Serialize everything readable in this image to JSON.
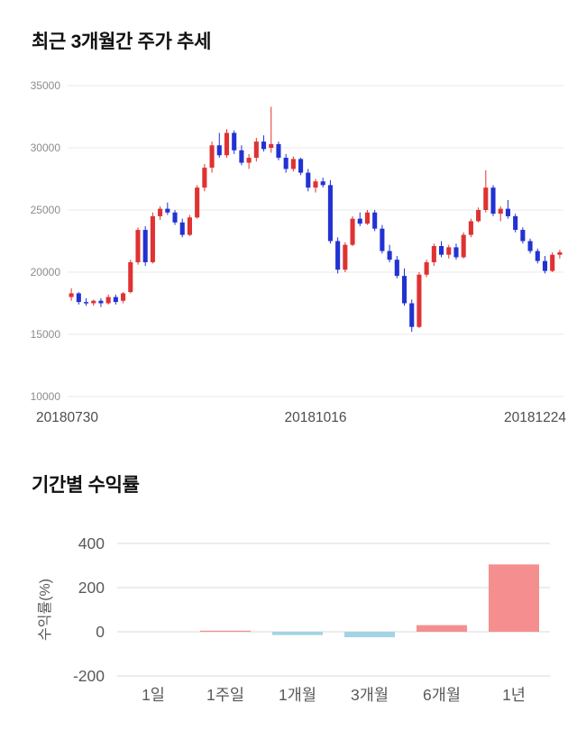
{
  "page": {
    "background": "#ffffff"
  },
  "sections": {
    "price_chart": {
      "title": "최근 3개월간 주가 추세"
    },
    "returns_chart": {
      "title": "기간별 수익률"
    }
  },
  "chart_data": [
    {
      "type": "candlestick",
      "title": "최근 3개월간 주가 추세",
      "ylim": [
        10000,
        35000
      ],
      "yticks": [
        35000,
        30000,
        25000,
        20000,
        15000,
        10000
      ],
      "xtick_labels": [
        "20180730",
        "20181016",
        "20181224"
      ],
      "up_color": "#e03232",
      "down_color": "#2232d2",
      "grid_color": "#e8e8e8",
      "tick_color": "#8c8c8c",
      "xlabel_color": "#4d4d4d",
      "grid": true,
      "candles_format": "[open, high, low, close]",
      "candles": [
        [
          18000,
          18700,
          17700,
          18300
        ],
        [
          18300,
          18400,
          17400,
          17600
        ],
        [
          17600,
          17900,
          17300,
          17500
        ],
        [
          17500,
          17800,
          17300,
          17700
        ],
        [
          17700,
          17900,
          17200,
          17500
        ],
        [
          17500,
          18200,
          17400,
          18000
        ],
        [
          18000,
          18200,
          17400,
          17600
        ],
        [
          17700,
          18400,
          17500,
          18300
        ],
        [
          18400,
          21000,
          18300,
          20800
        ],
        [
          20800,
          23600,
          20600,
          23400
        ],
        [
          23400,
          23700,
          20500,
          20800
        ],
        [
          20800,
          24800,
          20700,
          24500
        ],
        [
          24500,
          25300,
          24200,
          25100
        ],
        [
          25100,
          25600,
          24600,
          24800
        ],
        [
          24800,
          25000,
          23800,
          24000
        ],
        [
          24000,
          24300,
          22800,
          23000
        ],
        [
          23000,
          24600,
          22900,
          24400
        ],
        [
          24400,
          27000,
          24300,
          26800
        ],
        [
          26800,
          28700,
          26500,
          28400
        ],
        [
          28400,
          30500,
          28000,
          30200
        ],
        [
          30200,
          31200,
          29200,
          29400
        ],
        [
          29400,
          31500,
          29200,
          31200
        ],
        [
          31200,
          31400,
          29500,
          29800
        ],
        [
          29800,
          30200,
          28600,
          28800
        ],
        [
          28800,
          29500,
          28300,
          29200
        ],
        [
          29200,
          30800,
          28900,
          30500
        ],
        [
          30500,
          31000,
          29700,
          29900
        ],
        [
          30000,
          33300,
          29600,
          30300
        ],
        [
          30300,
          30500,
          29000,
          29200
        ],
        [
          29200,
          29500,
          28000,
          28300
        ],
        [
          28300,
          29300,
          28100,
          29100
        ],
        [
          29100,
          29200,
          27800,
          28000
        ],
        [
          28000,
          28300,
          26500,
          26800
        ],
        [
          26800,
          27500,
          26400,
          27300
        ],
        [
          27300,
          27600,
          26800,
          27000
        ],
        [
          27000,
          27400,
          22300,
          22500
        ],
        [
          22500,
          22800,
          19900,
          20200
        ],
        [
          20200,
          22400,
          20000,
          22200
        ],
        [
          22200,
          24500,
          22100,
          24300
        ],
        [
          24300,
          24800,
          23700,
          23900
        ],
        [
          23900,
          25000,
          23800,
          24800
        ],
        [
          24800,
          25000,
          23300,
          23500
        ],
        [
          23500,
          23800,
          21500,
          21700
        ],
        [
          21700,
          22200,
          20800,
          21000
        ],
        [
          21000,
          21300,
          19500,
          19700
        ],
        [
          19700,
          20300,
          17300,
          17500
        ],
        [
          17500,
          17800,
          15200,
          15600
        ],
        [
          15600,
          20000,
          15500,
          19800
        ],
        [
          19800,
          21000,
          19600,
          20800
        ],
        [
          20800,
          22300,
          20500,
          22100
        ],
        [
          22100,
          22500,
          21200,
          21400
        ],
        [
          21400,
          22200,
          21100,
          22000
        ],
        [
          22000,
          22300,
          21000,
          21200
        ],
        [
          21200,
          23200,
          21100,
          23000
        ],
        [
          23000,
          24300,
          22800,
          24100
        ],
        [
          24100,
          25200,
          24000,
          25000
        ],
        [
          25000,
          28200,
          24800,
          26800
        ],
        [
          26800,
          27000,
          24500,
          24700
        ],
        [
          24700,
          25300,
          24100,
          25100
        ],
        [
          25100,
          25800,
          24300,
          24500
        ],
        [
          24500,
          24700,
          23200,
          23400
        ],
        [
          23400,
          23600,
          22300,
          22500
        ],
        [
          22500,
          22700,
          21500,
          21700
        ],
        [
          21700,
          21900,
          20700,
          20900
        ],
        [
          20900,
          21300,
          19900,
          20100
        ],
        [
          20100,
          21600,
          20000,
          21400
        ],
        [
          21400,
          21800,
          21100,
          21600
        ]
      ]
    },
    {
      "type": "bar",
      "title": "기간별 수익률",
      "ylabel": "수익률(%)",
      "ylim": [
        -200,
        400
      ],
      "yticks": [
        400,
        200,
        0,
        -200
      ],
      "categories": [
        "1일",
        "1주일",
        "1개월",
        "3개월",
        "6개월",
        "1년"
      ],
      "values": [
        0,
        5,
        -15,
        -25,
        30,
        305
      ],
      "positive_color": "#f58f8f",
      "negative_color": "#a2d4e4",
      "grid_color": "#d9d9d9",
      "tick_color": "#595959",
      "grid": true
    }
  ]
}
